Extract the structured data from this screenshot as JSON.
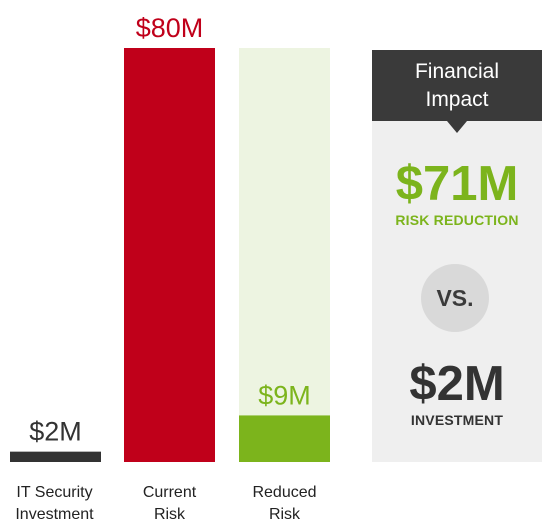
{
  "chart_data": {
    "type": "bar",
    "categories": [
      "IT Security Investment",
      "Current Risk",
      "Reduced Risk"
    ],
    "category_lines": [
      [
        "IT Security",
        "Investment"
      ],
      [
        "Current",
        "Risk"
      ],
      [
        "Reduced",
        "Risk"
      ]
    ],
    "values": [
      2,
      80,
      9
    ],
    "value_labels": [
      "$2M",
      "$80M",
      "$9M"
    ],
    "unit": "$M",
    "ylim": [
      0,
      80
    ],
    "grid": false,
    "colors": {
      "bar": [
        "#333333",
        "#c0001a",
        "#7cb41c"
      ],
      "label": [
        "#333333",
        "#c0001a",
        "#7cb41c"
      ],
      "track_reduced": "#edf4e1",
      "category_text": "#222222"
    }
  },
  "impact_panel": {
    "title_lines": [
      "Financial",
      "Impact"
    ],
    "reduction_value": "$71M",
    "reduction_label": "RISK REDUCTION",
    "versus": "VS.",
    "investment_value": "$2M",
    "investment_label": "INVESTMENT",
    "colors": {
      "panel_bg": "#efefef",
      "header_bg": "#3a3a3a",
      "green": "#7cb41c",
      "dark": "#333333",
      "vs_circle": "#d9d9d9"
    }
  }
}
